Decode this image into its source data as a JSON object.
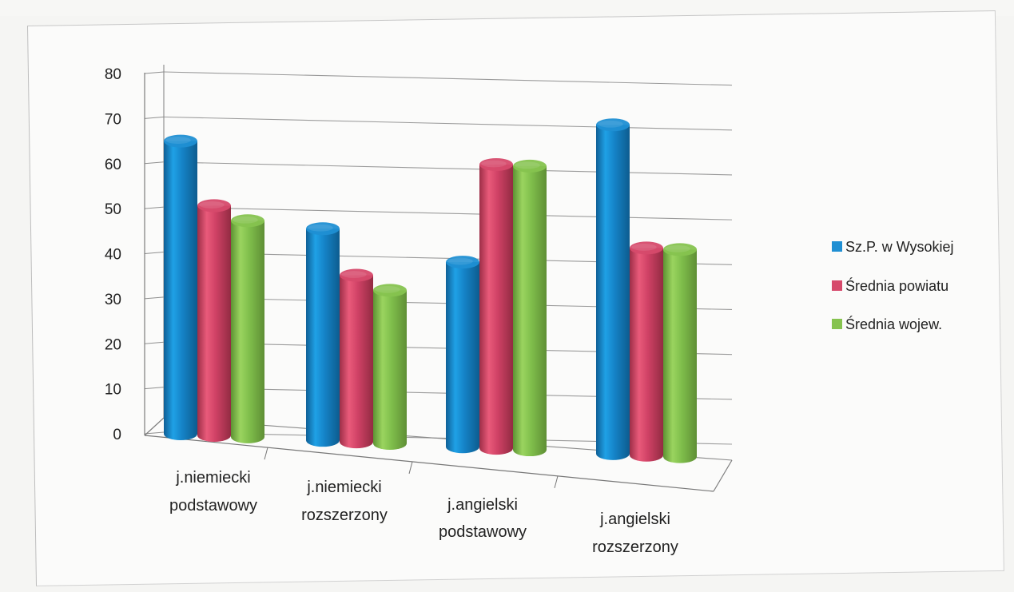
{
  "chart_data": {
    "type": "bar",
    "categories": [
      "j.niemiecki podstawowy",
      "j.niemiecki rozszerzony",
      "j.angielski podstawowy",
      "j.angielski rozszerzony"
    ],
    "series": [
      {
        "name": "Sz.P. w Wysokiej",
        "values": [
          65,
          47,
          41,
          73
        ],
        "color": "#1f8fd3"
      },
      {
        "name": "Średnia powiatu",
        "values": [
          51,
          37,
          63,
          46
        ],
        "color": "#d64a6b"
      },
      {
        "name": "Średnia wojew.",
        "values": [
          48,
          34,
          63,
          46
        ],
        "color": "#86c34f"
      }
    ],
    "yticks": [
      "0",
      "10",
      "20",
      "30",
      "40",
      "50",
      "60",
      "70",
      "80"
    ],
    "ylim": [
      0,
      80
    ],
    "legend": "right",
    "grid": true,
    "style": "3d-cylinder"
  }
}
